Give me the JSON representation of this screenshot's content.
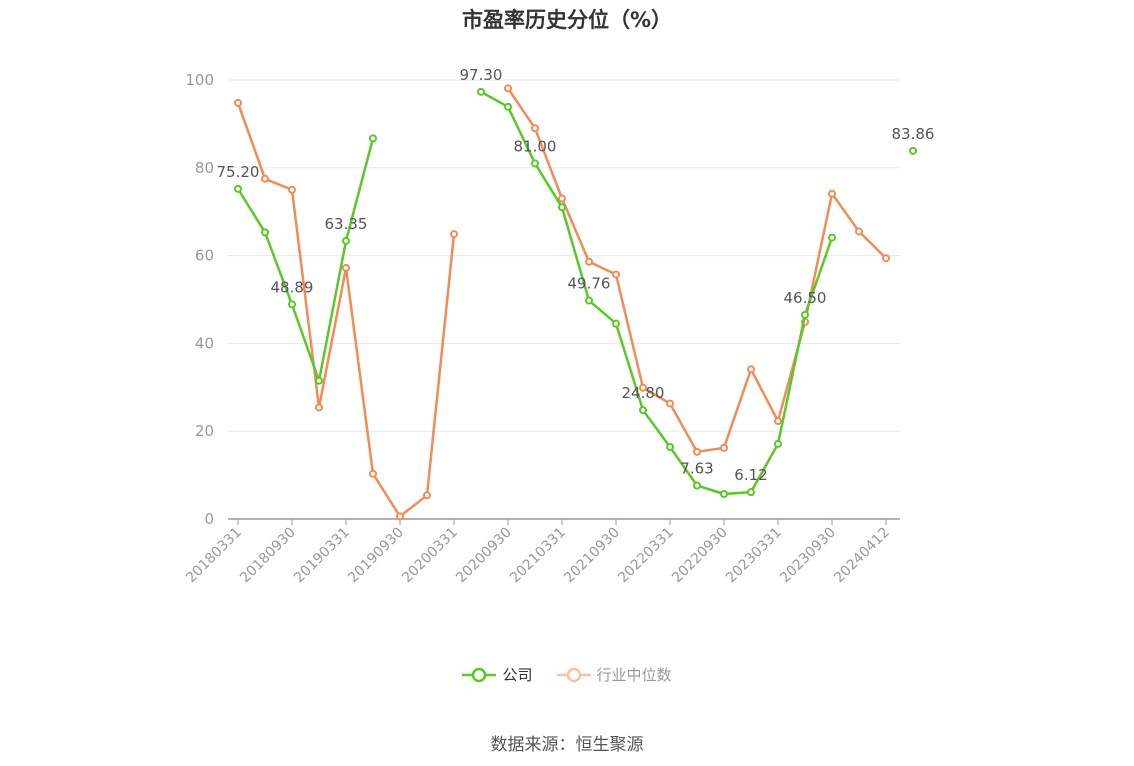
{
  "title": "市盈率历史分位（%）",
  "source": "数据来源：恒生聚源",
  "legend": {
    "company": "公司",
    "industry": "行业中位数"
  },
  "colors": {
    "company": "#5ac828",
    "industry": "#f08c55",
    "industry_legend": "#f9c2a6",
    "grid": "#e6e8f0",
    "axis": "#999999",
    "tick_label": "#999999",
    "data_label": "#555555"
  },
  "chart_data": {
    "type": "line",
    "title": "市盈率历史分位（%）",
    "xlabel": "",
    "ylabel": "",
    "ylim": [
      0,
      100
    ],
    "yticks": [
      0,
      20,
      40,
      60,
      80,
      100
    ],
    "x_tick_labels": [
      "20180331",
      "20180930",
      "20190331",
      "20190930",
      "20200331",
      "20200930",
      "20210331",
      "20210930",
      "20220331",
      "20220930",
      "20230331",
      "20230930",
      "20240412"
    ],
    "legend_position": "bottom",
    "grid": true,
    "series": [
      {
        "name": "公司",
        "values": [
          75.2,
          65.3,
          48.89,
          31.5,
          63.35,
          86.7,
          null,
          null,
          null,
          97.3,
          93.9,
          81.0,
          71.0,
          49.76,
          44.5,
          24.8,
          16.4,
          7.63,
          5.7,
          6.12,
          17.1,
          46.5,
          64.1,
          null,
          null,
          83.86
        ],
        "labels": [
          "75.20",
          "",
          "48.89",
          "",
          "63.35",
          "",
          "",
          "",
          "",
          "97.30",
          "",
          "81.00",
          "",
          "49.76",
          "",
          "24.80",
          "",
          "7.63",
          "",
          "6.12",
          "",
          "46.50",
          "",
          "",
          "",
          "83.86"
        ]
      },
      {
        "name": "行业中位数",
        "values": [
          94.8,
          77.5,
          75.0,
          25.4,
          57.2,
          10.3,
          0.6,
          5.4,
          64.9,
          null,
          98.1,
          89.0,
          73.0,
          58.6,
          55.7,
          29.9,
          26.3,
          15.3,
          16.2,
          34.1,
          22.3,
          44.9,
          74.1,
          65.5,
          59.4,
          null
        ]
      }
    ]
  }
}
